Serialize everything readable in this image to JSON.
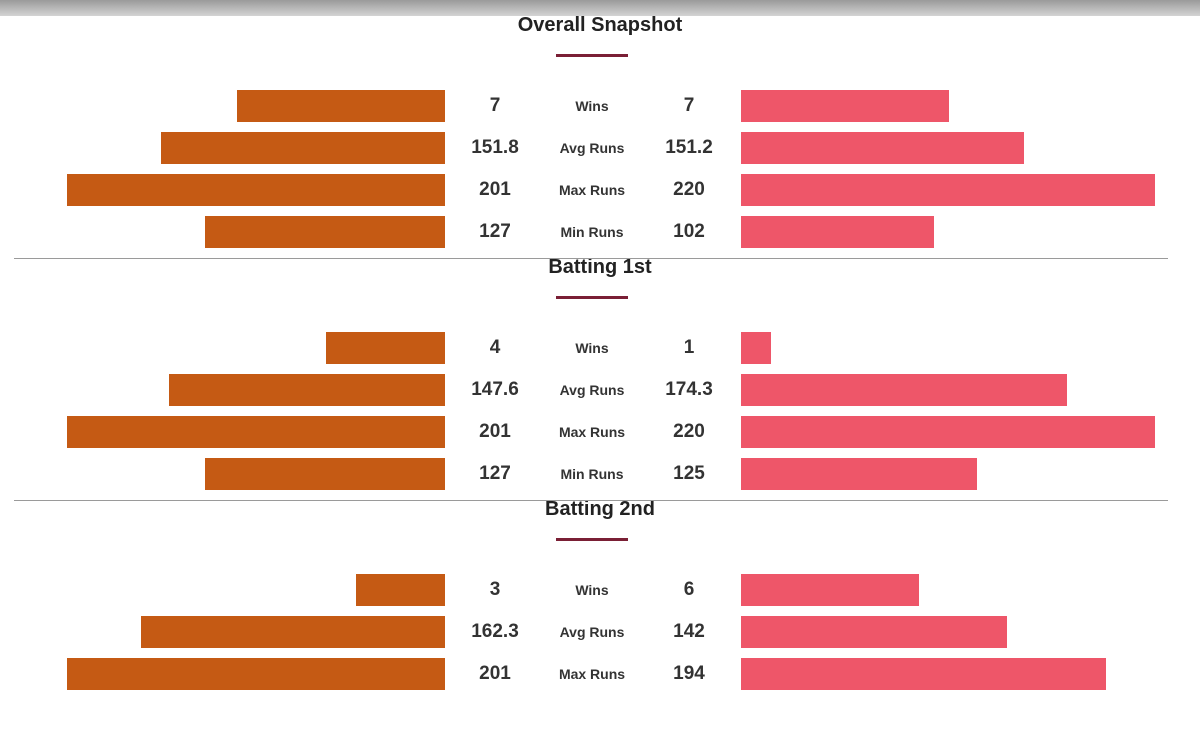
{
  "colors": {
    "team_left": "#c55a14",
    "team_right": "#ee5669",
    "title_underline": "#7a1f35"
  },
  "chart_data": {
    "type": "bar",
    "layout": "mirrored-horizontal",
    "sections": [
      {
        "title": "Overall Snapshot",
        "rows": [
          {
            "metric": "Wins",
            "left": 7,
            "right": 7
          },
          {
            "metric": "Avg Runs",
            "left": 151.8,
            "right": 151.2
          },
          {
            "metric": "Max Runs",
            "left": 201,
            "right": 220
          },
          {
            "metric": "Min Runs",
            "left": 127,
            "right": 102
          }
        ]
      },
      {
        "title": "Batting 1st",
        "rows": [
          {
            "metric": "Wins",
            "left": 4,
            "right": 1
          },
          {
            "metric": "Avg Runs",
            "left": 147.6,
            "right": 174.3
          },
          {
            "metric": "Max Runs",
            "left": 201,
            "right": 220
          },
          {
            "metric": "Min Runs",
            "left": 127,
            "right": 125
          }
        ]
      },
      {
        "title": "Batting 2nd",
        "rows": [
          {
            "metric": "Wins",
            "left": 3,
            "right": 6
          },
          {
            "metric": "Avg Runs",
            "left": 162.3,
            "right": 142
          },
          {
            "metric": "Max Runs",
            "left": 201,
            "right": 194
          }
        ]
      }
    ]
  }
}
